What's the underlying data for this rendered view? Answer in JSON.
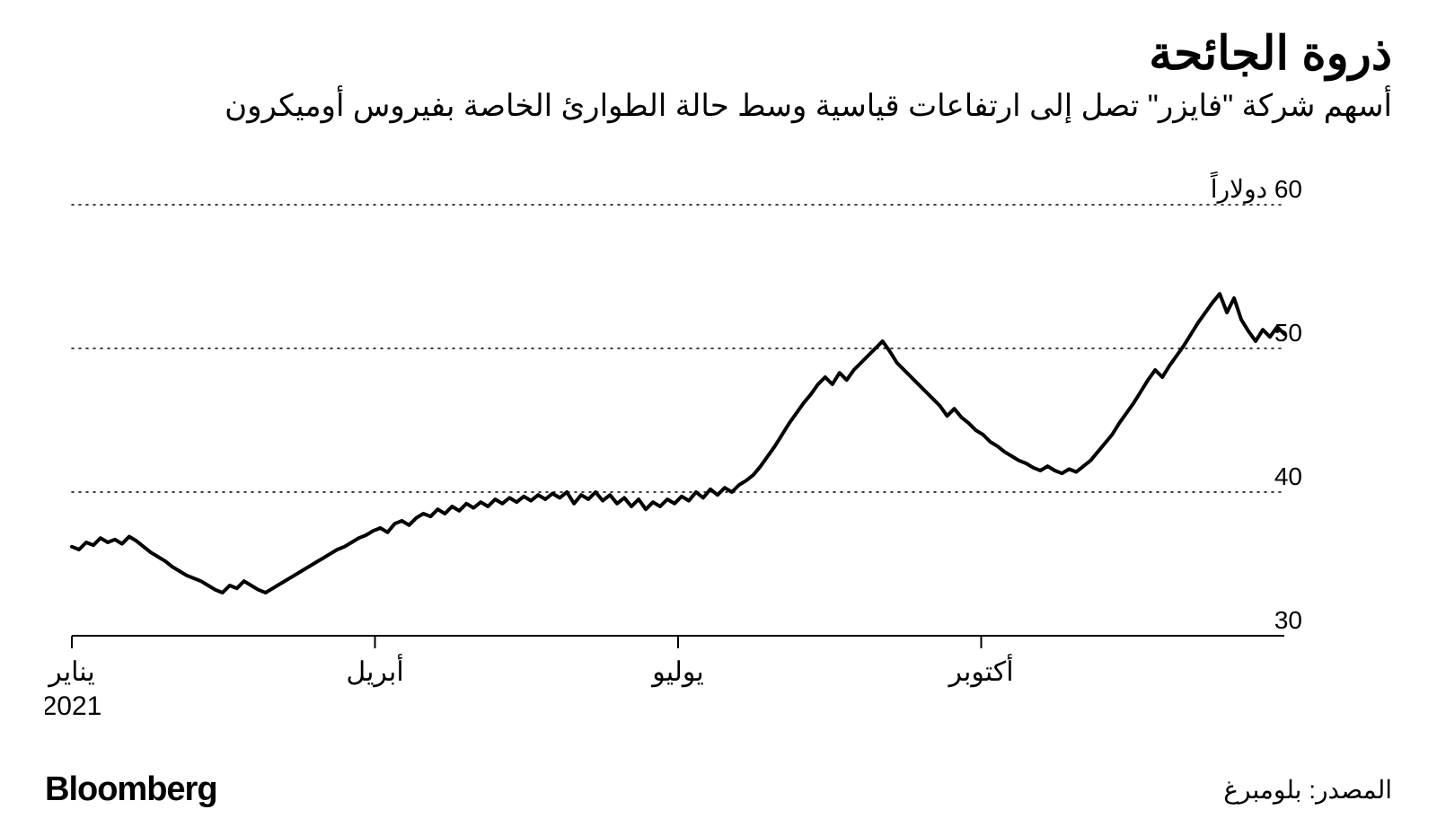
{
  "title": "ذروة الجائحة",
  "subtitle": "أسهم شركة \"فايزر\" تصل إلى ارتفاعات قياسية وسط حالة الطوارئ الخاصة بفيروس أوميكرون",
  "brand": "Bloomberg",
  "source": "المصدر: بلومبرغ",
  "chart": {
    "type": "line",
    "line_color": "#000000",
    "line_width": 4,
    "background_color": "#ffffff",
    "grid_color": "#000000",
    "grid_style": "dotted",
    "axis_color": "#000000",
    "y_axis": {
      "min": 30,
      "max": 60,
      "ticks": [
        30,
        40,
        50,
        60
      ],
      "labels": [
        "30",
        "40",
        "50",
        "60 دولاراً"
      ],
      "label_fontsize": 28,
      "position": "right"
    },
    "x_axis": {
      "ticks": [
        0,
        0.25,
        0.5,
        0.75
      ],
      "labels": [
        "يناير\n2021",
        "أبريل",
        "يوليو",
        "أكتوبر"
      ],
      "label_fontsize": 30
    },
    "data": [
      36.2,
      36.0,
      36.5,
      36.3,
      36.8,
      36.5,
      36.7,
      36.4,
      36.9,
      36.6,
      36.2,
      35.8,
      35.5,
      35.2,
      34.8,
      34.5,
      34.2,
      34.0,
      33.8,
      33.5,
      33.2,
      33.0,
      33.5,
      33.3,
      33.8,
      33.5,
      33.2,
      33.0,
      33.3,
      33.6,
      33.9,
      34.2,
      34.5,
      34.8,
      35.1,
      35.4,
      35.7,
      36.0,
      36.2,
      36.5,
      36.8,
      37.0,
      37.3,
      37.5,
      37.2,
      37.8,
      38.0,
      37.7,
      38.2,
      38.5,
      38.3,
      38.8,
      38.5,
      39.0,
      38.7,
      39.2,
      38.9,
      39.3,
      39.0,
      39.5,
      39.2,
      39.6,
      39.3,
      39.7,
      39.4,
      39.8,
      39.5,
      39.9,
      39.6,
      40.0,
      39.2,
      39.8,
      39.5,
      40.0,
      39.4,
      39.8,
      39.2,
      39.6,
      39.0,
      39.5,
      38.8,
      39.3,
      39.0,
      39.5,
      39.2,
      39.7,
      39.4,
      40.0,
      39.6,
      40.2,
      39.8,
      40.3,
      40.0,
      40.5,
      40.8,
      41.2,
      41.8,
      42.5,
      43.2,
      44.0,
      44.8,
      45.5,
      46.2,
      46.8,
      47.5,
      48.0,
      47.5,
      48.3,
      47.8,
      48.5,
      49.0,
      49.5,
      50.0,
      50.5,
      49.8,
      49.0,
      48.5,
      48.0,
      47.5,
      47.0,
      46.5,
      46.0,
      45.3,
      45.8,
      45.2,
      44.8,
      44.3,
      44.0,
      43.5,
      43.2,
      42.8,
      42.5,
      42.2,
      42.0,
      41.7,
      41.5,
      41.8,
      41.5,
      41.3,
      41.6,
      41.4,
      41.8,
      42.2,
      42.8,
      43.4,
      44.0,
      44.8,
      45.5,
      46.2,
      47.0,
      47.8,
      48.5,
      48.0,
      48.8,
      49.5,
      50.2,
      51.0,
      51.8,
      52.5,
      53.2,
      53.8,
      52.5,
      53.5,
      52.0,
      51.2,
      50.5,
      51.3,
      50.8,
      51.5,
      51.0
    ]
  }
}
